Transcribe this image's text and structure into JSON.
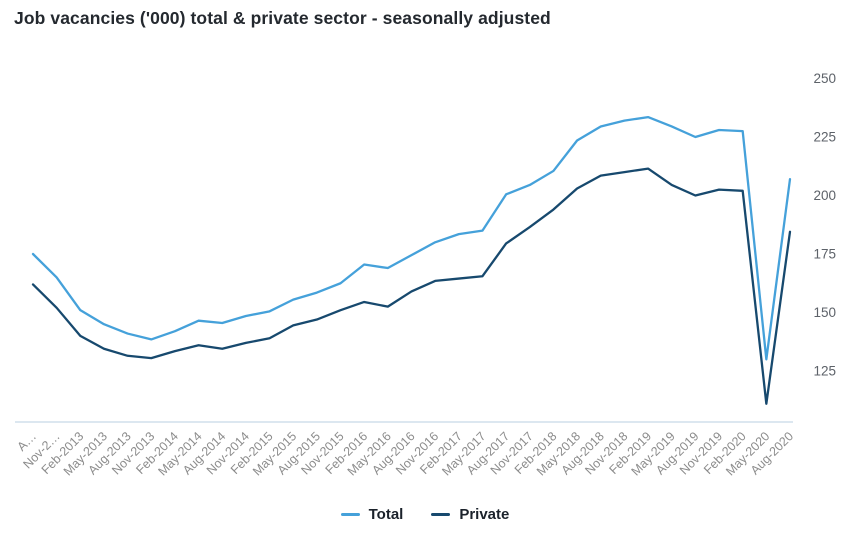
{
  "header": {
    "title": "Job vacancies ('000) total & private sector - seasonally adjusted"
  },
  "chart_data": {
    "type": "line",
    "title": "Job vacancies ('000) total & private sector - seasonally adjusted",
    "categories": [
      "A…",
      "Nov-2…",
      "Feb-2013",
      "May-2013",
      "Aug-2013",
      "Nov-2013",
      "Feb-2014",
      "May-2014",
      "Aug-2014",
      "Nov-2014",
      "Feb-2015",
      "May-2015",
      "Aug-2015",
      "Nov-2015",
      "Feb-2016",
      "May-2016",
      "Aug-2016",
      "Nov-2016",
      "Feb-2017",
      "May-2017",
      "Aug-2017",
      "Nov-2017",
      "Feb-2018",
      "May-2018",
      "Aug-2018",
      "Nov-2018",
      "Feb-2019",
      "May-2019",
      "Aug-2019",
      "Nov-2019",
      "Feb-2020",
      "May-2020",
      "Aug-2020"
    ],
    "series": [
      {
        "name": "Total",
        "color": "#45a1da",
        "values": [
          175,
          165,
          151,
          145,
          141,
          138.5,
          142,
          146.5,
          145.5,
          148.5,
          150.5,
          155.5,
          158.5,
          162.5,
          170.5,
          169,
          174.5,
          180,
          183.5,
          185,
          200.5,
          204.5,
          210.5,
          223.5,
          229.5,
          232,
          233.5,
          229.5,
          225,
          228,
          227.5,
          130,
          207
        ]
      },
      {
        "name": "Private",
        "color": "#17496e",
        "values": [
          162,
          152,
          140,
          134.5,
          131.5,
          130.5,
          133.5,
          136,
          134.5,
          137,
          139,
          144.5,
          147,
          151,
          154.5,
          152.5,
          159,
          163.5,
          164.5,
          165.5,
          179.5,
          186.5,
          194,
          203,
          208.5,
          210,
          211.5,
          204.5,
          200,
          202.5,
          202,
          111,
          184.5
        ]
      }
    ],
    "y_axis": {
      "side": "right",
      "ticks": [
        250,
        225,
        200,
        175,
        150,
        125
      ],
      "tick_color": "#5d6269"
    },
    "x_axis": {
      "label_rotation_deg": -45,
      "tick_color": "#8c8c8c",
      "axis_line_color": "#b9cfe2"
    },
    "grid": false,
    "legend_position": "bottom-center"
  },
  "legend": {
    "items": [
      {
        "label": "Total"
      },
      {
        "label": "Private"
      }
    ]
  }
}
